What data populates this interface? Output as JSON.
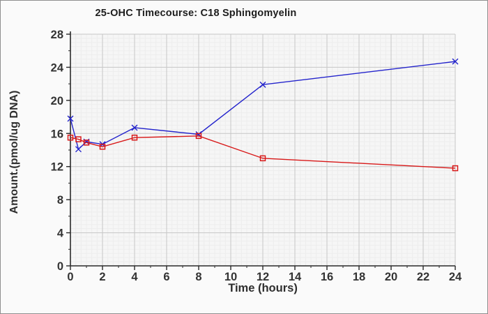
{
  "window": {
    "background": "#fafafa",
    "border_color": "#8e8e8e"
  },
  "chart_data": {
    "type": "line",
    "title": "25-OHC Timecourse: C18 Sphingomyelin",
    "xlabel": "Time (hours)",
    "ylabel": "Amount.(pmol/ug DNA)",
    "x": [
      0,
      0.5,
      1,
      2,
      4,
      8,
      12,
      24
    ],
    "series": [
      {
        "name": "blue-x-series",
        "marker": "x",
        "color": "#2323cc",
        "values": [
          17.8,
          14.1,
          15.0,
          14.7,
          16.7,
          15.9,
          21.9,
          24.7
        ]
      },
      {
        "name": "red-square-series",
        "marker": "square",
        "color": "#d81818",
        "values": [
          15.5,
          15.3,
          14.9,
          14.4,
          15.5,
          15.7,
          13.0,
          11.8
        ]
      }
    ],
    "xlim": [
      0,
      24
    ],
    "ylim": [
      0,
      28
    ],
    "xticks": [
      0,
      2,
      4,
      6,
      8,
      10,
      12,
      14,
      16,
      18,
      20,
      22,
      24
    ],
    "yticks": [
      0,
      4,
      8,
      12,
      16,
      20,
      24,
      28
    ],
    "grid": {
      "major_color": "#c7c7c7",
      "minor_color": "#ededed",
      "plot_background": "#f6f6f6",
      "x_minor_step": 0.3333333,
      "y_minor_step": 0.5
    },
    "axis_color": "#2a2a2a",
    "legend": "none"
  }
}
